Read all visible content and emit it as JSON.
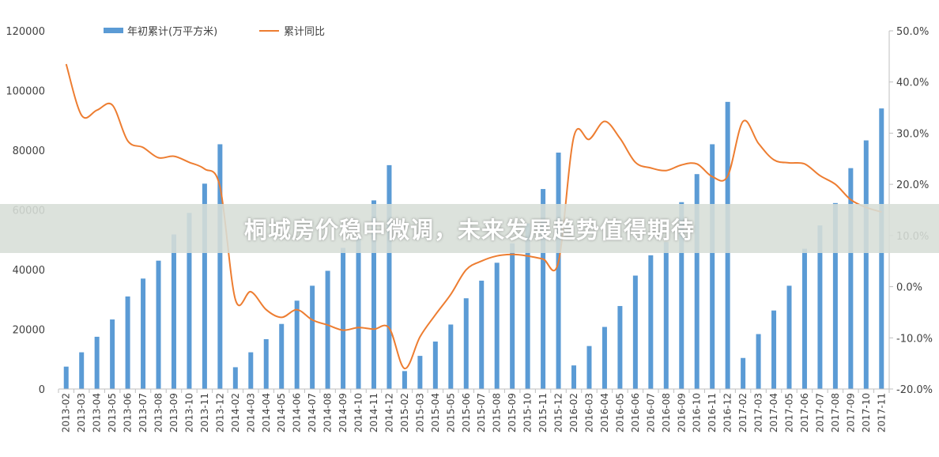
{
  "banner": {
    "title": "桐城房价稳中微调，未来发展趋势值得期待"
  },
  "colors": {
    "bar": "#5B9BD5",
    "line": "#ED7D31",
    "axis": "#BFBFBF",
    "text": "#404040"
  },
  "chart_data": {
    "type": "bar+line",
    "categories": [
      "2013-02",
      "2013-03",
      "2013-04",
      "2013-05",
      "2013-06",
      "2013-07",
      "2013-08",
      "2013-09",
      "2013-10",
      "2013-11",
      "2013-12",
      "2014-02",
      "2014-03",
      "2014-04",
      "2014-05",
      "2014-06",
      "2014-07",
      "2014-08",
      "2014-09",
      "2014-10",
      "2014-11",
      "2014-12",
      "2015-02",
      "2015-03",
      "2015-04",
      "2015-05",
      "2015-06",
      "2015-07",
      "2015-08",
      "2015-09",
      "2015-10",
      "2015-11",
      "2015-12",
      "2016-02",
      "2016-03",
      "2016-04",
      "2016-05",
      "2016-06",
      "2016-07",
      "2016-08",
      "2016-09",
      "2016-10",
      "2016-11",
      "2016-12",
      "2017-02",
      "2017-03",
      "2017-04",
      "2017-05",
      "2017-06",
      "2017-07",
      "2017-08",
      "2017-09",
      "2017-10",
      "2017-11"
    ],
    "series": [
      {
        "name": "年初累计(万平方米)",
        "type": "bar",
        "axis": "left",
        "values": [
          7500,
          12300,
          17500,
          23300,
          31000,
          37000,
          43000,
          51800,
          59000,
          68800,
          82000,
          7300,
          12300,
          16700,
          21800,
          29600,
          34600,
          39600,
          47300,
          51200,
          63200,
          75000,
          6000,
          11100,
          15900,
          21600,
          30400,
          36300,
          42300,
          48800,
          55500,
          67000,
          79200,
          7900,
          14400,
          20800,
          27800,
          38000,
          44800,
          49200,
          62600,
          72000,
          82000,
          96200,
          10400,
          18400,
          26300,
          34600,
          47000,
          54800,
          62300,
          74000,
          83300,
          94000
        ]
      },
      {
        "name": "累计同比",
        "type": "line",
        "axis": "right",
        "values": [
          43.5,
          33.5,
          34.5,
          35.5,
          28.5,
          27.2,
          25.2,
          25.5,
          24.3,
          23.0,
          19.5,
          -2.5,
          -1.0,
          -4.5,
          -6.0,
          -4.5,
          -6.5,
          -7.5,
          -8.5,
          -8.0,
          -8.3,
          -8.1,
          -16.0,
          -9.8,
          -5.5,
          -1.5,
          3.3,
          5.0,
          6.0,
          6.3,
          6.0,
          5.4,
          4.8,
          29.3,
          28.8,
          32.3,
          29.0,
          24.3,
          23.2,
          22.7,
          23.8,
          24.0,
          21.5,
          21.6,
          32.3,
          28.0,
          24.8,
          24.2,
          24.0,
          21.7,
          20.0,
          17.0,
          15.5,
          14.6
        ]
      }
    ],
    "y_left": {
      "min": 0,
      "max": 120000,
      "step": 20000,
      "ticks": [
        "0",
        "20000",
        "40000",
        "60000",
        "80000",
        "100000",
        "120000"
      ]
    },
    "y_right": {
      "min": -20,
      "max": 50,
      "step": 10,
      "ticks": [
        "-20.0%",
        "-10.0%",
        "0.0%",
        "10.0%",
        "20.0%",
        "30.0%",
        "40.0%",
        "50.0%"
      ]
    },
    "grid": false,
    "legend": {
      "position": "top-left",
      "entries": [
        "年初累计(万平方米)",
        "累计同比"
      ]
    }
  }
}
